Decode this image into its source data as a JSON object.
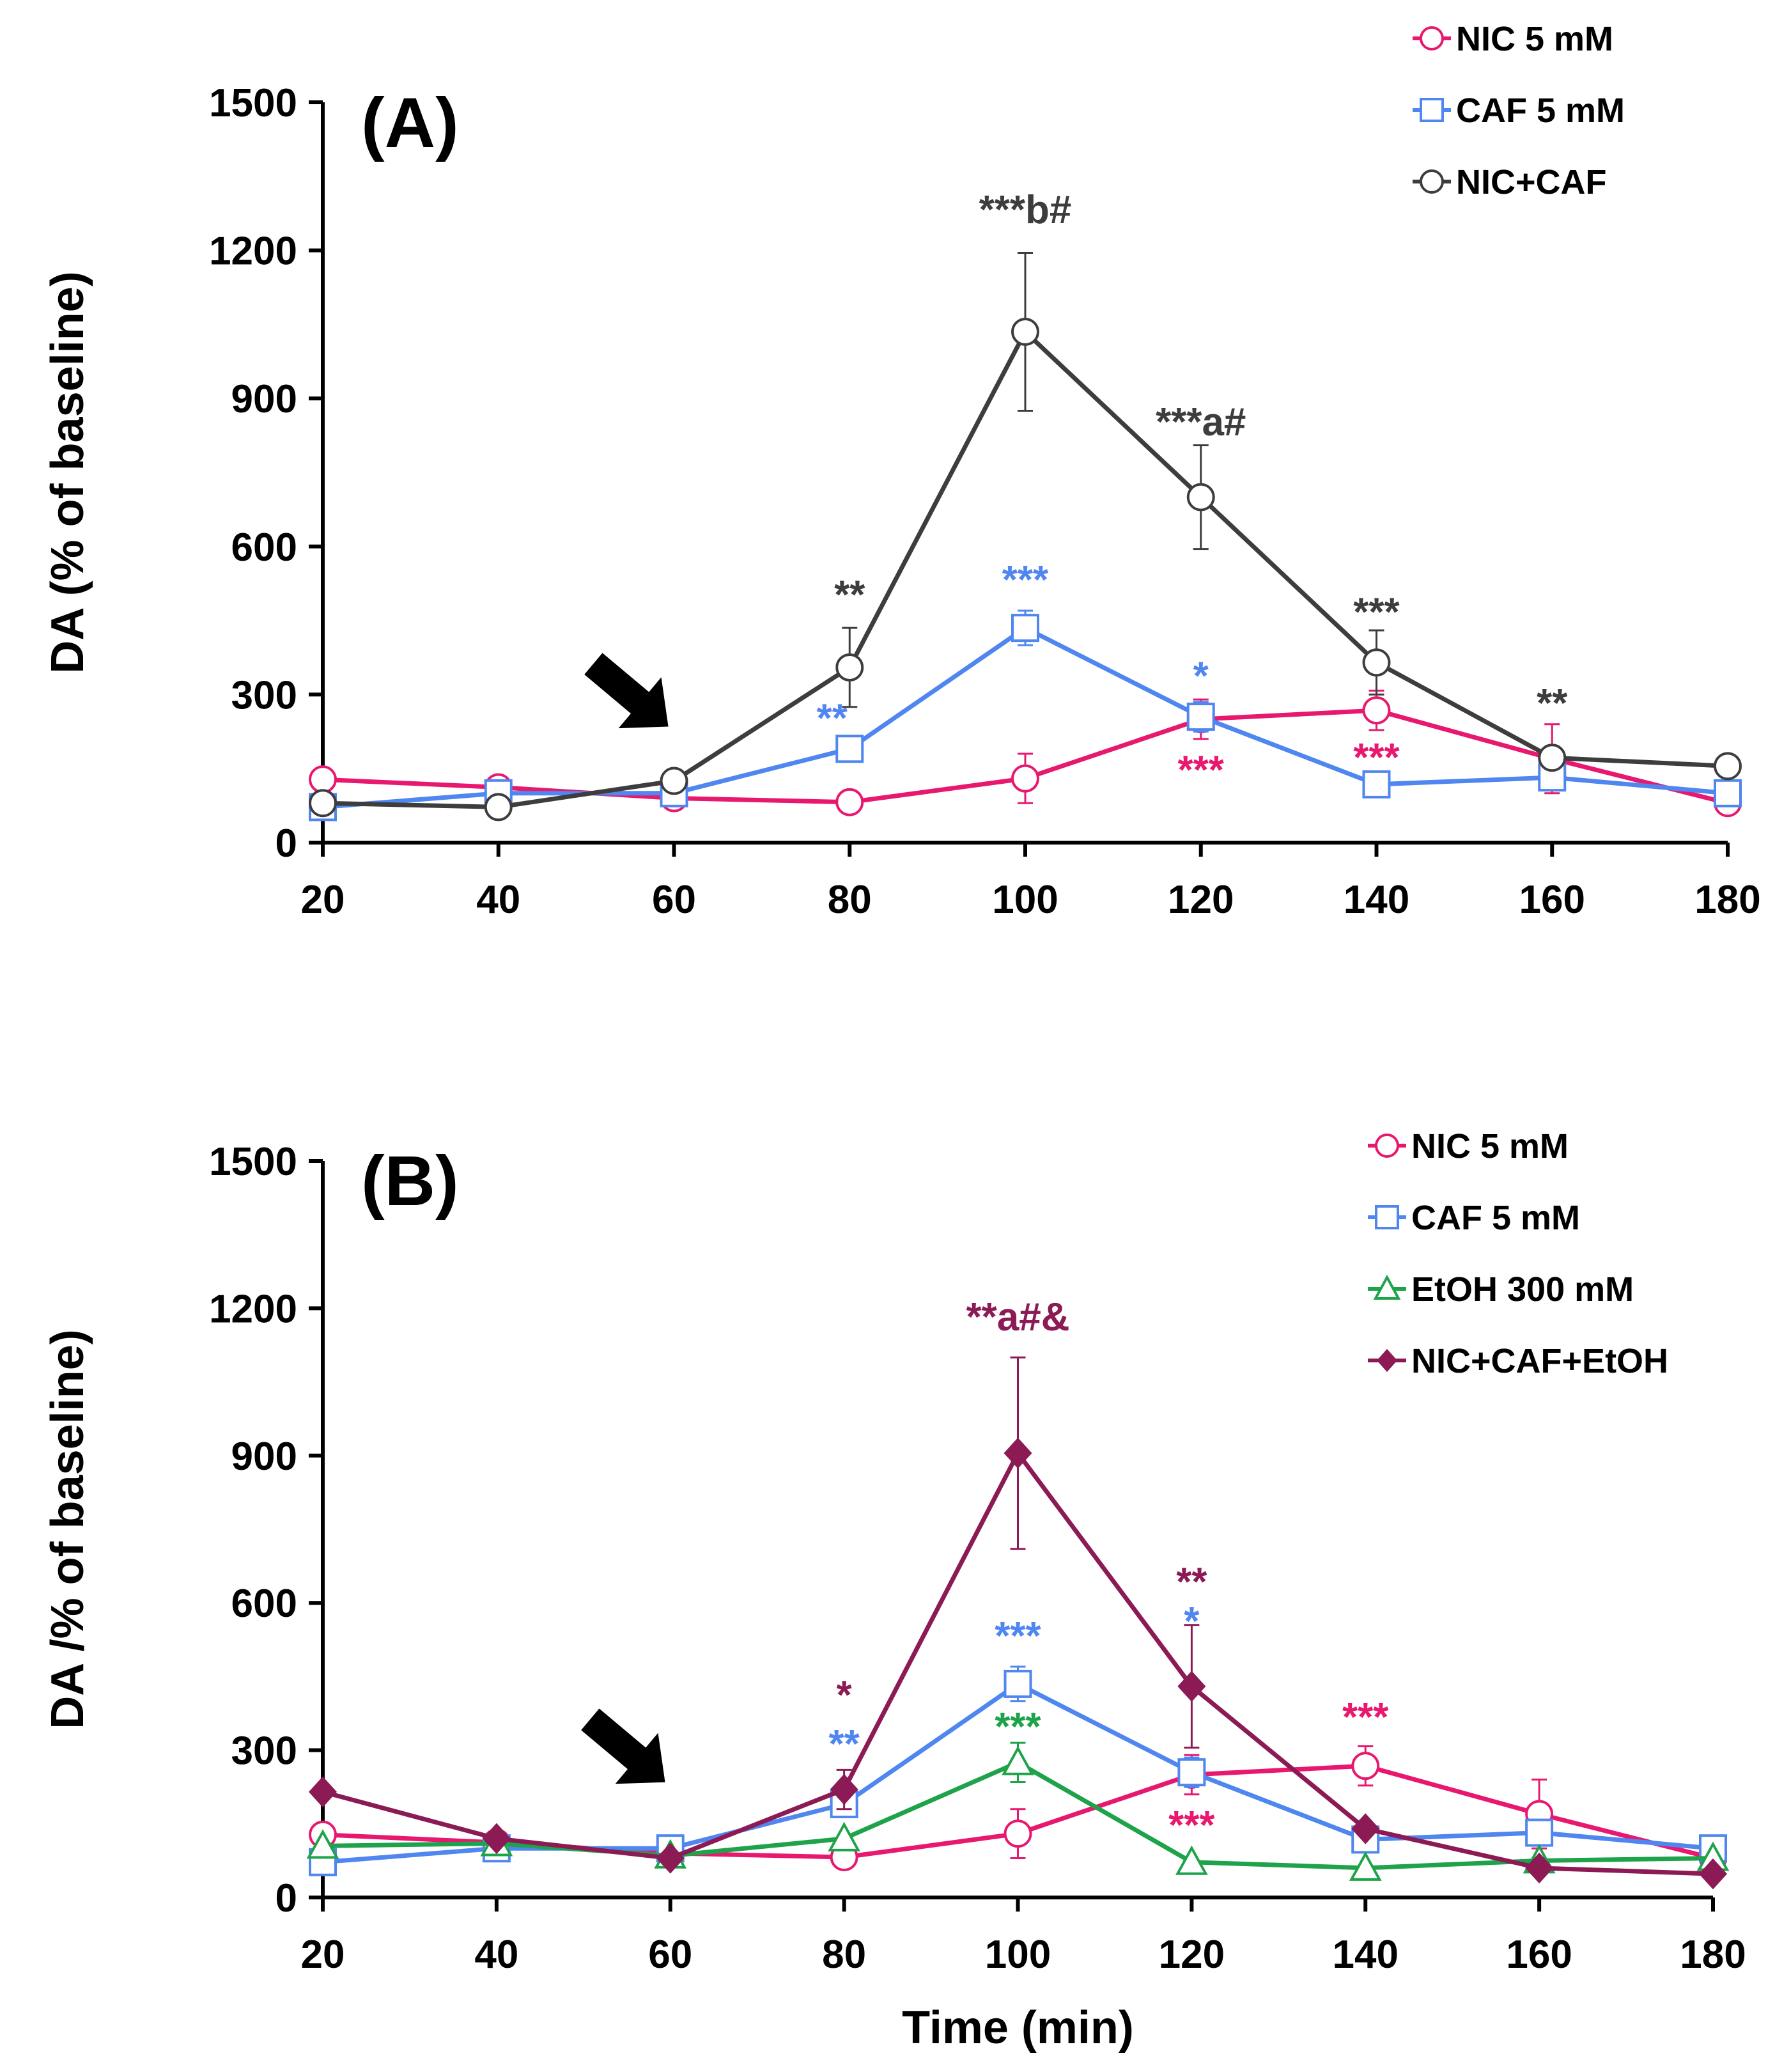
{
  "chart_data": [
    {
      "type": "line",
      "panel_label": "(A)",
      "ylabel": "DA (% of baseline)",
      "xlabel": "",
      "x": [
        20,
        40,
        60,
        80,
        100,
        120,
        140,
        160,
        180
      ],
      "xticks": [
        "20",
        "40",
        "60",
        "80",
        "100",
        "120",
        "140",
        "160",
        "180"
      ],
      "yticks": [
        "0",
        "300",
        "600",
        "900",
        "1200",
        "1500"
      ],
      "ylim": [
        0,
        1500
      ],
      "xlim": [
        20,
        180
      ],
      "arrow_at": 55,
      "legend_position": "top-right",
      "series": [
        {
          "name": "NIC 5 mM",
          "color": "#E8186F",
          "marker": "circle-open",
          "values": [
            128,
            112,
            90,
            82,
            130,
            250,
            268,
            170,
            80
          ],
          "errors": [
            0,
            0,
            0,
            0,
            50,
            40,
            40,
            70,
            0
          ]
        },
        {
          "name": "CAF 5 mM",
          "color": "#4F86F0",
          "marker": "square-open",
          "values": [
            72,
            100,
            100,
            190,
            435,
            255,
            118,
            132,
            100
          ],
          "errors": [
            0,
            0,
            0,
            0,
            35,
            30,
            0,
            0,
            0
          ]
        },
        {
          "name": "NIC+CAF",
          "color": "#3D3D3D",
          "marker": "circle-open",
          "values": [
            80,
            72,
            125,
            355,
            1035,
            700,
            365,
            172,
            155
          ],
          "errors": [
            0,
            0,
            0,
            80,
            160,
            105,
            65,
            0,
            0
          ]
        }
      ],
      "annotations": [
        {
          "x": 80,
          "y": 475,
          "text": "**",
          "color": "#3D3D3D"
        },
        {
          "x": 78,
          "y": 225,
          "text": "**",
          "color": "#4F86F0"
        },
        {
          "x": 100,
          "y": 1255,
          "text": "***b#",
          "color": "#3D3D3D"
        },
        {
          "x": 100,
          "y": 505,
          "text": "***",
          "color": "#4F86F0"
        },
        {
          "x": 120,
          "y": 825,
          "text": "***a#",
          "color": "#3D3D3D"
        },
        {
          "x": 120,
          "y": 310,
          "text": "*",
          "color": "#4F86F0"
        },
        {
          "x": 120,
          "y": 120,
          "text": "***",
          "color": "#E8186F"
        },
        {
          "x": 140,
          "y": 440,
          "text": "***",
          "color": "#3D3D3D"
        },
        {
          "x": 140,
          "y": 145,
          "text": "***",
          "color": "#E8186F"
        },
        {
          "x": 160,
          "y": 255,
          "text": "**",
          "color": "#3D3D3D"
        }
      ]
    },
    {
      "type": "line",
      "panel_label": "(B)",
      "ylabel": "DA /% of baseline)",
      "xlabel": "Time (min)",
      "x": [
        20,
        40,
        60,
        80,
        100,
        120,
        140,
        160,
        180
      ],
      "xticks": [
        "20",
        "40",
        "60",
        "80",
        "100",
        "120",
        "140",
        "160",
        "180"
      ],
      "yticks": [
        "0",
        "300",
        "600",
        "900",
        "1200",
        "1500"
      ],
      "ylim": [
        0,
        1500
      ],
      "xlim": [
        20,
        180
      ],
      "arrow_at": 55,
      "legend_position": "top-right",
      "series": [
        {
          "name": "NIC 5 mM",
          "color": "#E8186F",
          "marker": "circle-open",
          "values": [
            128,
            112,
            90,
            82,
            130,
            250,
            268,
            170,
            80
          ],
          "errors": [
            0,
            0,
            0,
            0,
            50,
            40,
            40,
            70,
            0
          ]
        },
        {
          "name": "CAF 5 mM",
          "color": "#4F86F0",
          "marker": "square-open",
          "values": [
            72,
            100,
            100,
            190,
            435,
            255,
            118,
            132,
            100
          ],
          "errors": [
            0,
            0,
            0,
            0,
            35,
            30,
            0,
            0,
            0
          ]
        },
        {
          "name": "EtOH 300 mM",
          "color": "#1EA34A",
          "marker": "triangle-open",
          "values": [
            105,
            110,
            85,
            120,
            275,
            72,
            60,
            75,
            80
          ],
          "errors": [
            0,
            0,
            0,
            0,
            40,
            0,
            0,
            0,
            0
          ]
        },
        {
          "name": "NIC+CAF+EtOH",
          "color": "#8B1A55",
          "marker": "diamond-filled",
          "values": [
            215,
            120,
            80,
            220,
            905,
            430,
            140,
            60,
            48
          ],
          "errors": [
            0,
            0,
            0,
            40,
            195,
            125,
            0,
            0,
            0
          ]
        }
      ],
      "annotations": [
        {
          "x": 80,
          "y": 385,
          "text": "*",
          "color": "#8B1A55"
        },
        {
          "x": 80,
          "y": 285,
          "text": "**",
          "color": "#4F86F0"
        },
        {
          "x": 100,
          "y": 1155,
          "text": "**a#&",
          "color": "#8B1A55"
        },
        {
          "x": 100,
          "y": 505,
          "text": "***",
          "color": "#4F86F0"
        },
        {
          "x": 100,
          "y": 320,
          "text": "***",
          "color": "#1EA34A"
        },
        {
          "x": 120,
          "y": 615,
          "text": "**",
          "color": "#8B1A55"
        },
        {
          "x": 120,
          "y": 535,
          "text": "*",
          "color": "#4F86F0"
        },
        {
          "x": 120,
          "y": 120,
          "text": "***",
          "color": "#E8186F"
        },
        {
          "x": 140,
          "y": 340,
          "text": "***",
          "color": "#E8186F"
        }
      ]
    }
  ]
}
